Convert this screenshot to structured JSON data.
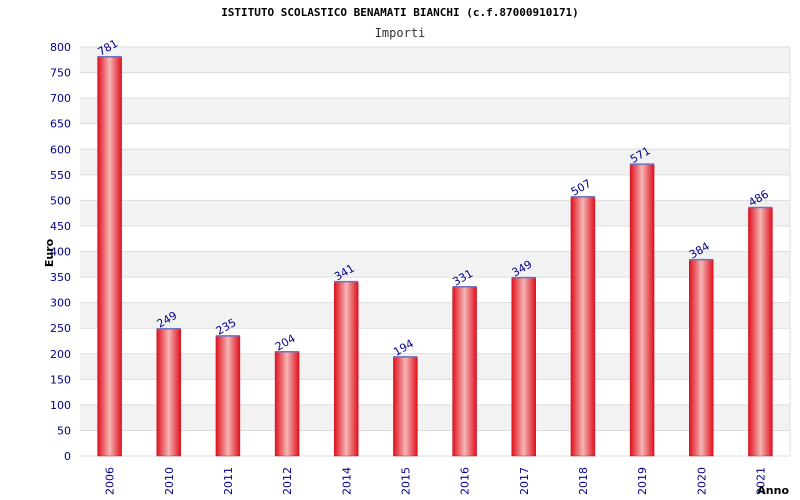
{
  "chart_data": {
    "type": "bar",
    "title": "ISTITUTO SCOLASTICO BENAMATI BIANCHI (c.f.87000910171)",
    "subtitle": "Importi",
    "xlabel": "Anno",
    "ylabel": "Euro",
    "categories": [
      "2006",
      "2010",
      "2011",
      "2012",
      "2014",
      "2015",
      "2016",
      "2017",
      "2018",
      "2019",
      "2020",
      "2021"
    ],
    "values": [
      781,
      249,
      235,
      204,
      341,
      194,
      331,
      349,
      507,
      571,
      384,
      486
    ],
    "ylim": [
      0,
      800
    ],
    "yticks": [
      0,
      50,
      100,
      150,
      200,
      250,
      300,
      350,
      400,
      450,
      500,
      550,
      600,
      650,
      700,
      750,
      800
    ],
    "grid": true,
    "colors": {
      "bar_edge": "#e0101c",
      "bar_highlight": "#f4b6b6",
      "bar_outline": "#6d72c3",
      "label": "#00008b",
      "band": "#f2f2f2"
    }
  }
}
